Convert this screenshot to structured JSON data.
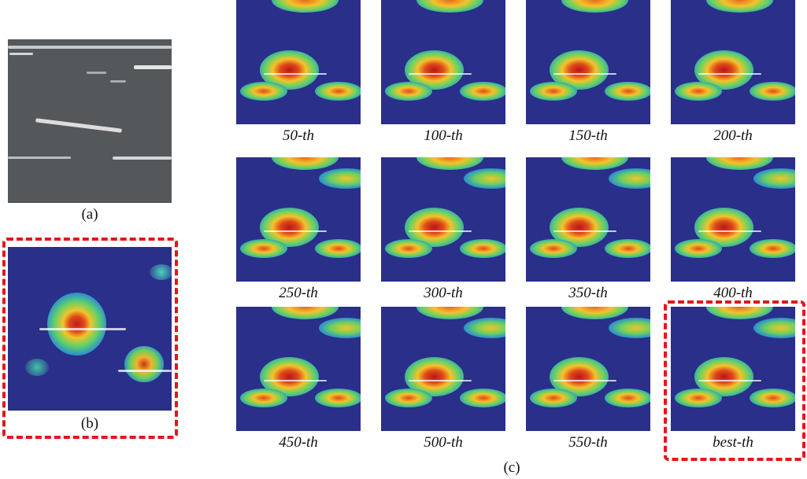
{
  "figure": {
    "panel_a": {
      "caption": "(a)",
      "description": "grayscale input image with bright horizontal streaks"
    },
    "panel_b": {
      "caption": "(b)",
      "description": "heatmap overlay, highlighted with red dashed box"
    },
    "panel_c": {
      "caption": "(c)"
    },
    "grid": [
      {
        "label": "50-th"
      },
      {
        "label": "100-th"
      },
      {
        "label": "150-th"
      },
      {
        "label": "200-th"
      },
      {
        "label": "250-th"
      },
      {
        "label": "300-th"
      },
      {
        "label": "350-th"
      },
      {
        "label": "400-th"
      },
      {
        "label": "450-th"
      },
      {
        "label": "500-th"
      },
      {
        "label": "550-th"
      },
      {
        "label": "best-th"
      }
    ],
    "highlight_color": "#e3161b",
    "heatmap_base_color": "#2a2f8a"
  }
}
